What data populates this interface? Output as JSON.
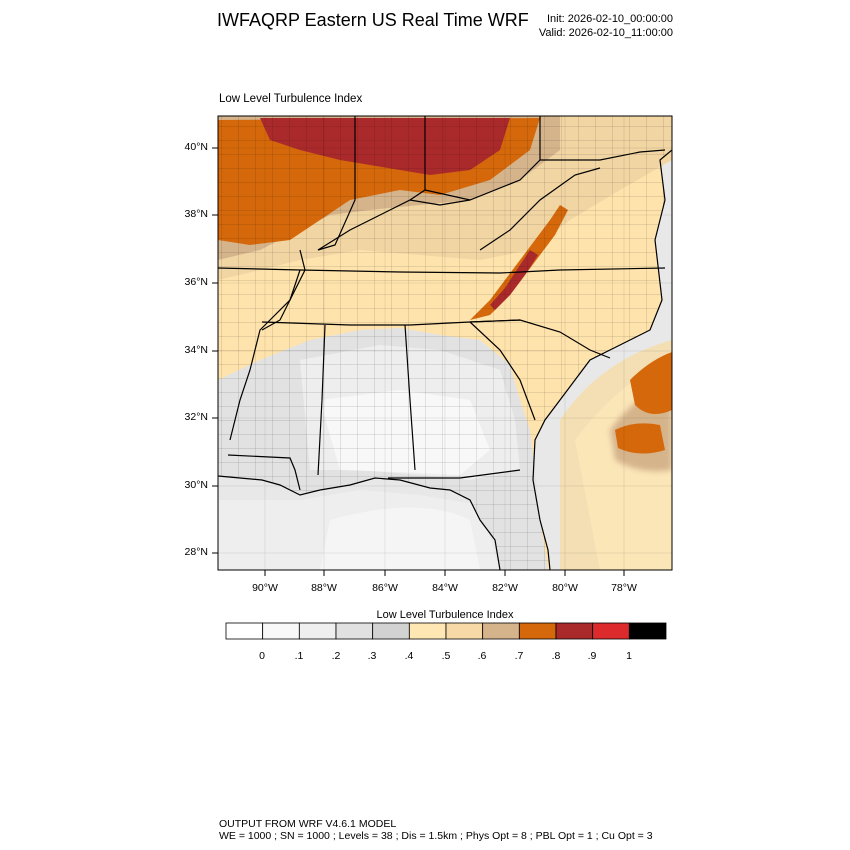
{
  "header": {
    "title": "IWFAQRP Eastern US Real Time WRF",
    "init": "Init: 2026-02-10_00:00:00",
    "valid": "Valid: 2026-02-10_11:00:00"
  },
  "map": {
    "subtitle": "Low Level Turbulence Index",
    "lat_labels": [
      "40°N",
      "38°N",
      "36°N",
      "34°N",
      "32°N",
      "30°N",
      "28°N"
    ],
    "lon_labels": [
      "90°W",
      "88°W",
      "86°W",
      "84°W",
      "82°W",
      "80°W",
      "78°W"
    ],
    "extent": {
      "lon_min": -91.6,
      "lon_max": -76.8,
      "lat_min": 27.5,
      "lat_max": 41.0
    }
  },
  "colorbar": {
    "title": "Low Level Turbulence Index",
    "labels": [
      "0",
      ".1",
      ".2",
      ".3",
      ".4",
      ".5",
      ".6",
      ".7",
      ".8",
      ".9",
      "1"
    ],
    "colors": [
      "#ffffff",
      "#f8f8f8",
      "#efefef",
      "#e1e1e1",
      "#d2d2d2",
      "#ffe7b4",
      "#f7d9a8",
      "#d5b48c",
      "#d4680b",
      "#aa2a2c",
      "#dd2a2c",
      "#000000"
    ]
  },
  "footer": {
    "line1": "OUTPUT FROM WRF V4.6.1 MODEL",
    "line2": "WE = 1000 ; SN = 1000 ; Levels = 38 ; Dis = 1.5km ; Phys Opt = 8 ; PBL Opt = 1 ; Cu Opt = 3"
  }
}
